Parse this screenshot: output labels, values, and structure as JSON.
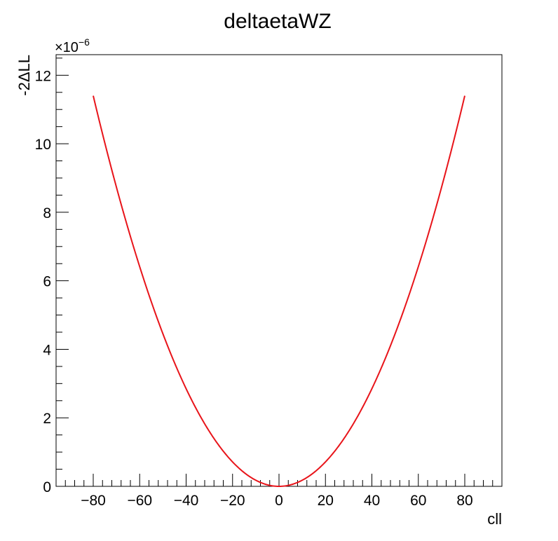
{
  "chart_data": {
    "type": "line",
    "title": "deltaetaWZ",
    "xlabel": "cll",
    "ylabel": "-2ΔLL",
    "y_exponent_label": "×10",
    "y_exponent_power": "−6",
    "xlim": [
      -96,
      96
    ],
    "ylim": [
      0,
      12.6
    ],
    "x_ticks": [
      -80,
      -60,
      -40,
      -20,
      0,
      20,
      40,
      60,
      80
    ],
    "x_tick_labels": [
      "−80",
      "−60",
      "−40",
      "−20",
      "0",
      "20",
      "40",
      "60",
      "80"
    ],
    "y_ticks": [
      0,
      2,
      4,
      6,
      8,
      10,
      12
    ],
    "y_tick_labels": [
      "0",
      "2",
      "4",
      "6",
      "8",
      "10",
      "12"
    ],
    "series": [
      {
        "color": "#e8141a",
        "x": [
          -80,
          -70,
          -60,
          -50,
          -40,
          -30,
          -20,
          -10,
          0,
          10,
          20,
          30,
          40,
          50,
          60,
          70,
          80
        ],
        "y": [
          11.4,
          8.73,
          6.41,
          4.45,
          2.85,
          1.6,
          0.71,
          0.18,
          0,
          0.18,
          0.71,
          1.6,
          2.85,
          4.45,
          6.41,
          8.73,
          11.4
        ]
      }
    ],
    "grid": false,
    "legend": "none"
  }
}
